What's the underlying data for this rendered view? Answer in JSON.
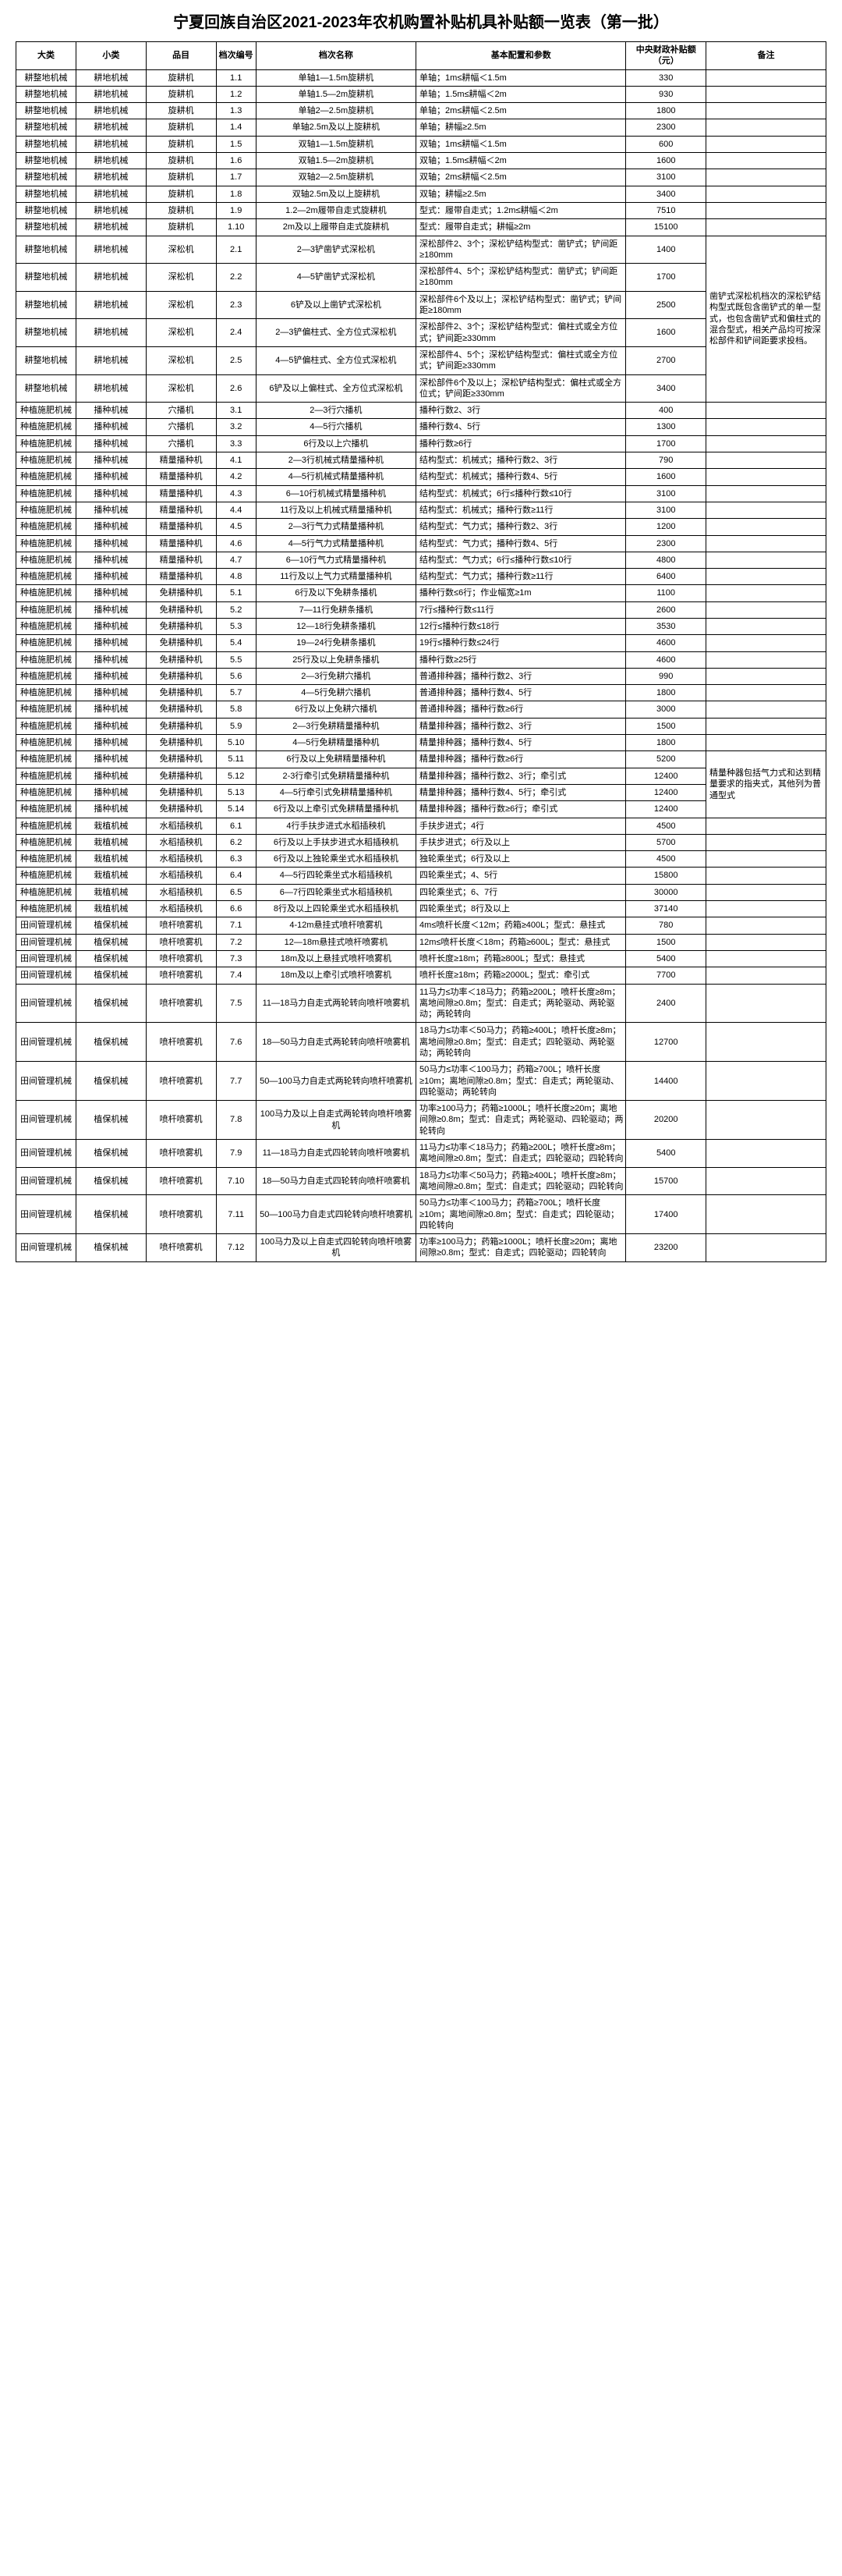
{
  "title": "宁夏回族自治区2021-2023年农机购置补贴机具补贴额一览表（第一批）",
  "headers": [
    "大类",
    "小类",
    "品目",
    "档次编号",
    "档次名称",
    "基本配置和参数",
    "中央财政补贴额（元）",
    "备注"
  ],
  "remarks": {
    "shensong": "凿铲式深松机档次的深松铲结构型式既包含凿铲式的单一型式，也包含凿铲式和偏柱式的混合型式，相关产品均可按深松部件和铲间距要求投档。",
    "jingliang": "精量种器包括气力式和达到精量要求的指夹式，其他列为普通型式"
  },
  "rows": [
    {
      "c1": "耕整地机械",
      "c2": "耕地机械",
      "c3": "旋耕机",
      "code": "1.1",
      "name": "单轴1—1.5m旋耕机",
      "cfg": "单轴；1m≤耕幅＜1.5m",
      "sub": "330"
    },
    {
      "c1": "耕整地机械",
      "c2": "耕地机械",
      "c3": "旋耕机",
      "code": "1.2",
      "name": "单轴1.5—2m旋耕机",
      "cfg": "单轴；1.5m≤耕幅＜2m",
      "sub": "930"
    },
    {
      "c1": "耕整地机械",
      "c2": "耕地机械",
      "c3": "旋耕机",
      "code": "1.3",
      "name": "单轴2—2.5m旋耕机",
      "cfg": "单轴；2m≤耕幅＜2.5m",
      "sub": "1800"
    },
    {
      "c1": "耕整地机械",
      "c2": "耕地机械",
      "c3": "旋耕机",
      "code": "1.4",
      "name": "单轴2.5m及以上旋耕机",
      "cfg": "单轴；耕幅≥2.5m",
      "sub": "2300"
    },
    {
      "c1": "耕整地机械",
      "c2": "耕地机械",
      "c3": "旋耕机",
      "code": "1.5",
      "name": "双轴1—1.5m旋耕机",
      "cfg": "双轴；1m≤耕幅＜1.5m",
      "sub": "600"
    },
    {
      "c1": "耕整地机械",
      "c2": "耕地机械",
      "c3": "旋耕机",
      "code": "1.6",
      "name": "双轴1.5—2m旋耕机",
      "cfg": "双轴；1.5m≤耕幅＜2m",
      "sub": "1600"
    },
    {
      "c1": "耕整地机械",
      "c2": "耕地机械",
      "c3": "旋耕机",
      "code": "1.7",
      "name": "双轴2—2.5m旋耕机",
      "cfg": "双轴；2m≤耕幅＜2.5m",
      "sub": "3100"
    },
    {
      "c1": "耕整地机械",
      "c2": "耕地机械",
      "c3": "旋耕机",
      "code": "1.8",
      "name": "双轴2.5m及以上旋耕机",
      "cfg": "双轴；耕幅≥2.5m",
      "sub": "3400"
    },
    {
      "c1": "耕整地机械",
      "c2": "耕地机械",
      "c3": "旋耕机",
      "code": "1.9",
      "name": "1.2—2m履带自走式旋耕机",
      "cfg": "型式：履带自走式；1.2m≤耕幅＜2m",
      "sub": "7510"
    },
    {
      "c1": "耕整地机械",
      "c2": "耕地机械",
      "c3": "旋耕机",
      "code": "1.10",
      "name": "2m及以上履带自走式旋耕机",
      "cfg": "型式：履带自走式；耕幅≥2m",
      "sub": "15100"
    },
    {
      "c1": "耕整地机械",
      "c2": "耕地机械",
      "c3": "深松机",
      "code": "2.1",
      "name": "2—3铲凿铲式深松机",
      "cfg": "深松部件2、3个；深松铲结构型式：凿铲式；铲间距≥180mm",
      "sub": "1400",
      "rk": "shensong",
      "rkspan": 6
    },
    {
      "c1": "耕整地机械",
      "c2": "耕地机械",
      "c3": "深松机",
      "code": "2.2",
      "name": "4—5铲凿铲式深松机",
      "cfg": "深松部件4、5个；深松铲结构型式：凿铲式；铲间距≥180mm",
      "sub": "1700"
    },
    {
      "c1": "耕整地机械",
      "c2": "耕地机械",
      "c3": "深松机",
      "code": "2.3",
      "name": "6铲及以上凿铲式深松机",
      "cfg": "深松部件6个及以上；深松铲结构型式：凿铲式；铲间距≥180mm",
      "sub": "2500"
    },
    {
      "c1": "耕整地机械",
      "c2": "耕地机械",
      "c3": "深松机",
      "code": "2.4",
      "name": "2—3铲偏柱式、全方位式深松机",
      "cfg": "深松部件2、3个；深松铲结构型式：偏柱式或全方位式；铲间距≥330mm",
      "sub": "1600"
    },
    {
      "c1": "耕整地机械",
      "c2": "耕地机械",
      "c3": "深松机",
      "code": "2.5",
      "name": "4—5铲偏柱式、全方位式深松机",
      "cfg": "深松部件4、5个；深松铲结构型式：偏柱式或全方位式；铲间距≥330mm",
      "sub": "2700"
    },
    {
      "c1": "耕整地机械",
      "c2": "耕地机械",
      "c3": "深松机",
      "code": "2.6",
      "name": "6铲及以上偏柱式、全方位式深松机",
      "cfg": "深松部件6个及以上；深松铲结构型式：偏柱式或全方位式；铲间距≥330mm",
      "sub": "3400"
    },
    {
      "c1": "种植施肥机械",
      "c2": "播种机械",
      "c3": "穴播机",
      "code": "3.1",
      "name": "2—3行穴播机",
      "cfg": "播种行数2、3行",
      "sub": "400"
    },
    {
      "c1": "种植施肥机械",
      "c2": "播种机械",
      "c3": "穴播机",
      "code": "3.2",
      "name": "4—5行穴播机",
      "cfg": "播种行数4、5行",
      "sub": "1300"
    },
    {
      "c1": "种植施肥机械",
      "c2": "播种机械",
      "c3": "穴播机",
      "code": "3.3",
      "name": "6行及以上穴播机",
      "cfg": "播种行数≥6行",
      "sub": "1700"
    },
    {
      "c1": "种植施肥机械",
      "c2": "播种机械",
      "c3": "精量播种机",
      "code": "4.1",
      "name": "2—3行机械式精量播种机",
      "cfg": "结构型式：机械式；播种行数2、3行",
      "sub": "790"
    },
    {
      "c1": "种植施肥机械",
      "c2": "播种机械",
      "c3": "精量播种机",
      "code": "4.2",
      "name": "4—5行机械式精量播种机",
      "cfg": "结构型式：机械式；播种行数4、5行",
      "sub": "1600"
    },
    {
      "c1": "种植施肥机械",
      "c2": "播种机械",
      "c3": "精量播种机",
      "code": "4.3",
      "name": "6—10行机械式精量播种机",
      "cfg": "结构型式：机械式；6行≤播种行数≤10行",
      "sub": "3100"
    },
    {
      "c1": "种植施肥机械",
      "c2": "播种机械",
      "c3": "精量播种机",
      "code": "4.4",
      "name": "11行及以上机械式精量播种机",
      "cfg": "结构型式：机械式；播种行数≥11行",
      "sub": "3100"
    },
    {
      "c1": "种植施肥机械",
      "c2": "播种机械",
      "c3": "精量播种机",
      "code": "4.5",
      "name": "2—3行气力式精量播种机",
      "cfg": "结构型式：气力式；播种行数2、3行",
      "sub": "1200"
    },
    {
      "c1": "种植施肥机械",
      "c2": "播种机械",
      "c3": "精量播种机",
      "code": "4.6",
      "name": "4—5行气力式精量播种机",
      "cfg": "结构型式：气力式；播种行数4、5行",
      "sub": "2300"
    },
    {
      "c1": "种植施肥机械",
      "c2": "播种机械",
      "c3": "精量播种机",
      "code": "4.7",
      "name": "6—10行气力式精量播种机",
      "cfg": "结构型式：气力式；6行≤播种行数≤10行",
      "sub": "4800"
    },
    {
      "c1": "种植施肥机械",
      "c2": "播种机械",
      "c3": "精量播种机",
      "code": "4.8",
      "name": "11行及以上气力式精量播种机",
      "cfg": "结构型式：气力式；播种行数≥11行",
      "sub": "6400"
    },
    {
      "c1": "种植施肥机械",
      "c2": "播种机械",
      "c3": "免耕播种机",
      "code": "5.1",
      "name": "6行及以下免耕条播机",
      "cfg": "播种行数≤6行；作业幅宽≥1m",
      "sub": "1100"
    },
    {
      "c1": "种植施肥机械",
      "c2": "播种机械",
      "c3": "免耕播种机",
      "code": "5.2",
      "name": "7—11行免耕条播机",
      "cfg": "7行≤播种行数≤11行",
      "sub": "2600"
    },
    {
      "c1": "种植施肥机械",
      "c2": "播种机械",
      "c3": "免耕播种机",
      "code": "5.3",
      "name": "12—18行免耕条播机",
      "cfg": "12行≤播种行数≤18行",
      "sub": "3530"
    },
    {
      "c1": "种植施肥机械",
      "c2": "播种机械",
      "c3": "免耕播种机",
      "code": "5.4",
      "name": "19—24行免耕条播机",
      "cfg": "19行≤播种行数≤24行",
      "sub": "4600"
    },
    {
      "c1": "种植施肥机械",
      "c2": "播种机械",
      "c3": "免耕播种机",
      "code": "5.5",
      "name": "25行及以上免耕条播机",
      "cfg": "播种行数≥25行",
      "sub": "4600"
    },
    {
      "c1": "种植施肥机械",
      "c2": "播种机械",
      "c3": "免耕播种机",
      "code": "5.6",
      "name": "2—3行免耕穴播机",
      "cfg": "普通排种器；播种行数2、3行",
      "sub": "990"
    },
    {
      "c1": "种植施肥机械",
      "c2": "播种机械",
      "c3": "免耕播种机",
      "code": "5.7",
      "name": "4—5行免耕穴播机",
      "cfg": "普通排种器；播种行数4、5行",
      "sub": "1800"
    },
    {
      "c1": "种植施肥机械",
      "c2": "播种机械",
      "c3": "免耕播种机",
      "code": "5.8",
      "name": "6行及以上免耕穴播机",
      "cfg": "普通排种器；播种行数≥6行",
      "sub": "3000"
    },
    {
      "c1": "种植施肥机械",
      "c2": "播种机械",
      "c3": "免耕播种机",
      "code": "5.9",
      "name": "2—3行免耕精量播种机",
      "cfg": "精量排种器；播种行数2、3行",
      "sub": "1500"
    },
    {
      "c1": "种植施肥机械",
      "c2": "播种机械",
      "c3": "免耕播种机",
      "code": "5.10",
      "name": "4—5行免耕精量播种机",
      "cfg": "精量排种器；播种行数4、5行",
      "sub": "1800"
    },
    {
      "c1": "种植施肥机械",
      "c2": "播种机械",
      "c3": "免耕播种机",
      "code": "5.11",
      "name": "6行及以上免耕精量播种机",
      "cfg": "精量排种器；播种行数≥6行",
      "sub": "5200",
      "rk": "jingliang",
      "rkspan": 4
    },
    {
      "c1": "种植施肥机械",
      "c2": "播种机械",
      "c3": "免耕播种机",
      "code": "5.12",
      "name": "2-3行牵引式免耕精量播种机",
      "cfg": "精量排种器；播种行数2、3行；牵引式",
      "sub": "12400"
    },
    {
      "c1": "种植施肥机械",
      "c2": "播种机械",
      "c3": "免耕播种机",
      "code": "5.13",
      "name": "4—5行牵引式免耕精量播种机",
      "cfg": "精量排种器；播种行数4、5行；牵引式",
      "sub": "12400"
    },
    {
      "c1": "种植施肥机械",
      "c2": "播种机械",
      "c3": "免耕播种机",
      "code": "5.14",
      "name": "6行及以上牵引式免耕精量播种机",
      "cfg": "精量排种器；播种行数≥6行；牵引式",
      "sub": "12400"
    },
    {
      "c1": "种植施肥机械",
      "c2": "栽植机械",
      "c3": "水稻插秧机",
      "code": "6.1",
      "name": "4行手扶步进式水稻插秧机",
      "cfg": "手扶步进式；4行",
      "sub": "4500"
    },
    {
      "c1": "种植施肥机械",
      "c2": "栽植机械",
      "c3": "水稻插秧机",
      "code": "6.2",
      "name": "6行及以上手扶步进式水稻插秧机",
      "cfg": "手扶步进式；6行及以上",
      "sub": "5700"
    },
    {
      "c1": "种植施肥机械",
      "c2": "栽植机械",
      "c3": "水稻插秧机",
      "code": "6.3",
      "name": "6行及以上独轮乘坐式水稻插秧机",
      "cfg": "独轮乘坐式；6行及以上",
      "sub": "4500"
    },
    {
      "c1": "种植施肥机械",
      "c2": "栽植机械",
      "c3": "水稻插秧机",
      "code": "6.4",
      "name": "4—5行四轮乘坐式水稻插秧机",
      "cfg": "四轮乘坐式；4、5行",
      "sub": "15800"
    },
    {
      "c1": "种植施肥机械",
      "c2": "栽植机械",
      "c3": "水稻插秧机",
      "code": "6.5",
      "name": "6—7行四轮乘坐式水稻插秧机",
      "cfg": "四轮乘坐式；6、7行",
      "sub": "30000"
    },
    {
      "c1": "种植施肥机械",
      "c2": "栽植机械",
      "c3": "水稻插秧机",
      "code": "6.6",
      "name": "8行及以上四轮乘坐式水稻插秧机",
      "cfg": "四轮乘坐式；8行及以上",
      "sub": "37140"
    },
    {
      "c1": "田间管理机械",
      "c2": "植保机械",
      "c3": "喷杆喷雾机",
      "code": "7.1",
      "name": "4-12m悬挂式喷杆喷雾机",
      "cfg": "4m≤喷杆长度＜12m；药箱≥400L；型式：悬挂式",
      "sub": "780"
    },
    {
      "c1": "田间管理机械",
      "c2": "植保机械",
      "c3": "喷杆喷雾机",
      "code": "7.2",
      "name": "12—18m悬挂式喷杆喷雾机",
      "cfg": "12m≤喷杆长度＜18m；药箱≥600L；型式：悬挂式",
      "sub": "1500"
    },
    {
      "c1": "田间管理机械",
      "c2": "植保机械",
      "c3": "喷杆喷雾机",
      "code": "7.3",
      "name": "18m及以上悬挂式喷杆喷雾机",
      "cfg": "喷杆长度≥18m；药箱≥800L；型式：悬挂式",
      "sub": "5400"
    },
    {
      "c1": "田间管理机械",
      "c2": "植保机械",
      "c3": "喷杆喷雾机",
      "code": "7.4",
      "name": "18m及以上牵引式喷杆喷雾机",
      "cfg": "喷杆长度≥18m；药箱≥2000L；型式：牵引式",
      "sub": "7700"
    },
    {
      "c1": "田间管理机械",
      "c2": "植保机械",
      "c3": "喷杆喷雾机",
      "code": "7.5",
      "name": "11—18马力自走式两轮转向喷杆喷雾机",
      "cfg": "11马力≤功率＜18马力；药箱≥200L；喷杆长度≥8m；离地间隙≥0.8m；型式：自走式；两轮驱动、两轮驱动；两轮转向",
      "sub": "2400"
    },
    {
      "c1": "田间管理机械",
      "c2": "植保机械",
      "c3": "喷杆喷雾机",
      "code": "7.6",
      "name": "18—50马力自走式两轮转向喷杆喷雾机",
      "cfg": "18马力≤功率＜50马力；药箱≥400L；喷杆长度≥8m；离地间隙≥0.8m；型式：自走式；四轮驱动、两轮驱动；两轮转向",
      "sub": "12700"
    },
    {
      "c1": "田间管理机械",
      "c2": "植保机械",
      "c3": "喷杆喷雾机",
      "code": "7.7",
      "name": "50—100马力自走式两轮转向喷杆喷雾机",
      "cfg": "50马力≤功率＜100马力；药箱≥700L；喷杆长度≥10m；离地间隙≥0.8m；型式：自走式；两轮驱动、四轮驱动；两轮转向",
      "sub": "14400"
    },
    {
      "c1": "田间管理机械",
      "c2": "植保机械",
      "c3": "喷杆喷雾机",
      "code": "7.8",
      "name": "100马力及以上自走式两轮转向喷杆喷雾机",
      "cfg": "功率≥100马力；药箱≥1000L；喷杆长度≥20m；离地间隙≥0.8m；型式：自走式；两轮驱动、四轮驱动；两轮转向",
      "sub": "20200"
    },
    {
      "c1": "田间管理机械",
      "c2": "植保机械",
      "c3": "喷杆喷雾机",
      "code": "7.9",
      "name": "11—18马力自走式四轮转向喷杆喷雾机",
      "cfg": "11马力≤功率＜18马力；药箱≥200L；喷杆长度≥8m；离地间隙≥0.8m；型式：自走式；四轮驱动；四轮转向",
      "sub": "5400"
    },
    {
      "c1": "田间管理机械",
      "c2": "植保机械",
      "c3": "喷杆喷雾机",
      "code": "7.10",
      "name": "18—50马力自走式四轮转向喷杆喷雾机",
      "cfg": "18马力≤功率＜50马力；药箱≥400L；喷杆长度≥8m；离地间隙≥0.8m；型式：自走式；四轮驱动；四轮转向",
      "sub": "15700"
    },
    {
      "c1": "田间管理机械",
      "c2": "植保机械",
      "c3": "喷杆喷雾机",
      "code": "7.11",
      "name": "50—100马力自走式四轮转向喷杆喷雾机",
      "cfg": "50马力≤功率＜100马力；药箱≥700L；喷杆长度≥10m；离地间隙≥0.8m；型式：自走式；四轮驱动；四轮转向",
      "sub": "17400"
    },
    {
      "c1": "田间管理机械",
      "c2": "植保机械",
      "c3": "喷杆喷雾机",
      "code": "7.12",
      "name": "100马力及以上自走式四轮转向喷杆喷雾机",
      "cfg": "功率≥100马力；药箱≥1000L；喷杆长度≥20m；离地间隙≥0.8m；型式：自走式；四轮驱动；四轮转向",
      "sub": "23200"
    }
  ]
}
